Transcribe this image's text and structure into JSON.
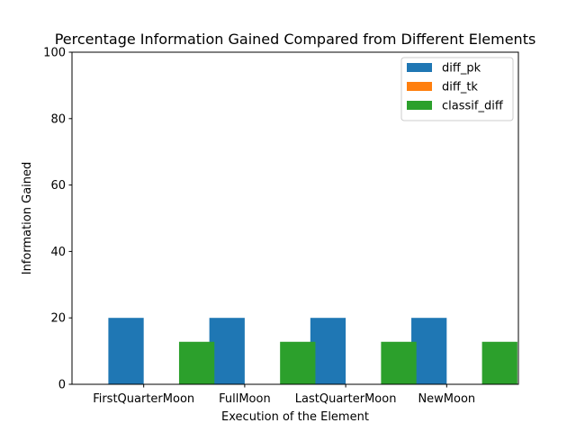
{
  "chart_data": {
    "type": "bar",
    "title": "Percentage Information Gained Compared from Different Elements",
    "xlabel": "Execution of the Element",
    "ylabel": "Information Gained",
    "ylim": [
      0,
      100
    ],
    "yticks": [
      0,
      20,
      40,
      60,
      80,
      100
    ],
    "categories": [
      "FirstQuarterMoon",
      "FullMoon",
      "LastQuarterMoon",
      "NewMoon"
    ],
    "series": [
      {
        "name": "diff_pk",
        "color": "#1f77b4",
        "values": [
          20,
          20,
          20,
          20
        ]
      },
      {
        "name": "diff_tk",
        "color": "#ff7f0e",
        "values": [
          0,
          0,
          0,
          0
        ]
      },
      {
        "name": "classif_diff",
        "color": "#2ca02c",
        "values": [
          12.8,
          12.8,
          12.8,
          12.8
        ]
      }
    ],
    "legend": "top-right",
    "grid": false
  }
}
